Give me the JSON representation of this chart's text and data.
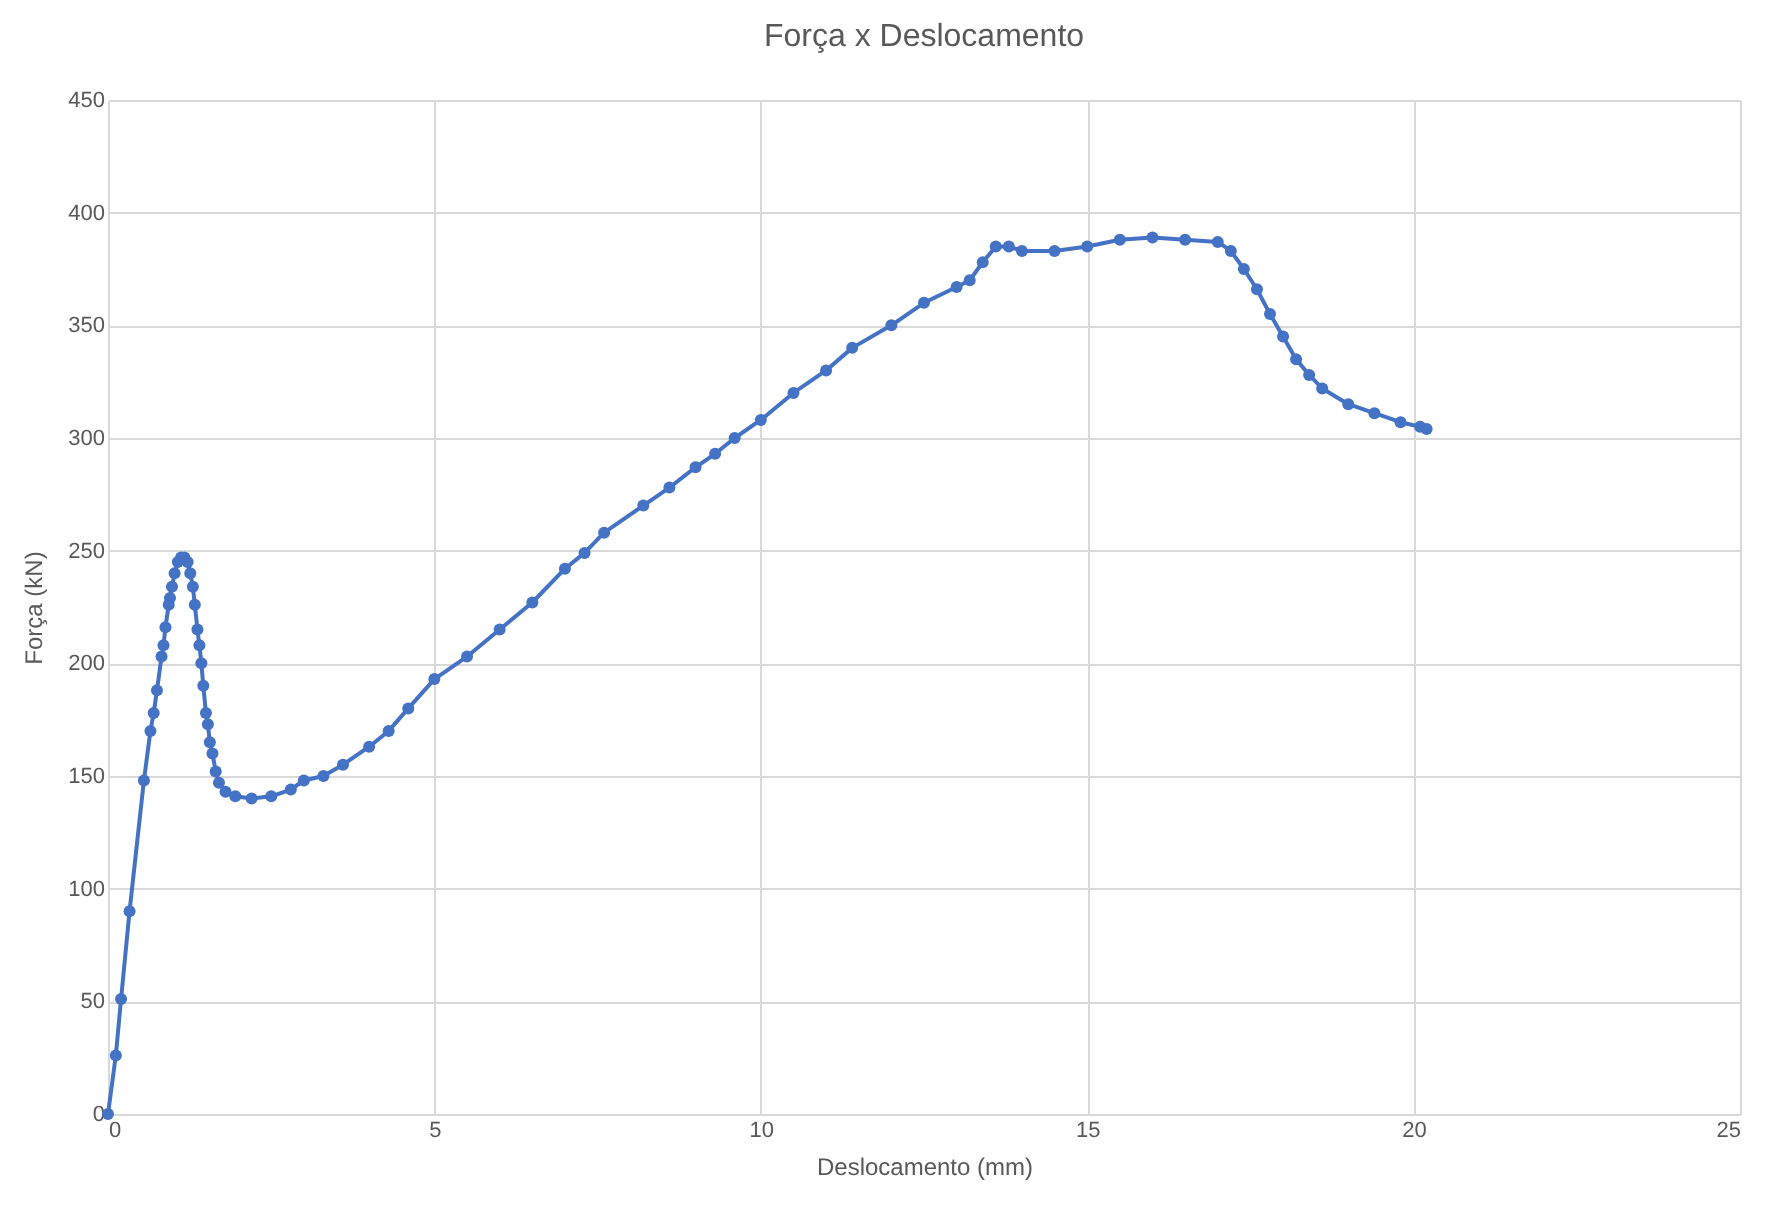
{
  "chart_data": {
    "type": "line",
    "title": "Força x Deslocamento",
    "xlabel": "Deslocamento (mm)",
    "ylabel": "Força (kN)",
    "x": [
      0,
      0.12,
      0.2,
      0.33,
      0.55,
      0.65,
      0.7,
      0.75,
      0.82,
      0.85,
      0.88,
      0.93,
      0.95,
      0.98,
      1.02,
      1.07,
      1.12,
      1.17,
      1.22,
      1.26,
      1.3,
      1.33,
      1.37,
      1.4,
      1.43,
      1.46,
      1.5,
      1.53,
      1.56,
      1.6,
      1.65,
      1.7,
      1.8,
      1.95,
      2.2,
      2.5,
      2.8,
      3.0,
      3.3,
      3.6,
      4.0,
      4.3,
      4.6,
      5.0,
      5.5,
      6.0,
      6.5,
      7.0,
      7.3,
      7.6,
      8.2,
      8.6,
      9.0,
      9.3,
      9.6,
      10.0,
      10.5,
      11.0,
      11.4,
      12.0,
      12.5,
      13.0,
      13.2,
      13.4,
      13.6,
      13.8,
      14.0,
      14.5,
      15.0,
      15.5,
      16.0,
      16.5,
      17.0,
      17.2,
      17.4,
      17.6,
      17.8,
      18.0,
      18.2,
      18.4,
      18.6,
      19.0,
      19.4,
      19.8,
      20.1,
      20.2
    ],
    "series": [
      {
        "color": "#4472c4",
        "values": [
          0,
          26,
          51,
          90,
          148,
          170,
          178,
          188,
          203,
          208,
          216,
          226,
          229,
          234,
          240,
          245,
          247,
          247,
          245,
          240,
          234,
          226,
          215,
          208,
          200,
          190,
          178,
          173,
          165,
          160,
          152,
          147,
          143,
          141,
          140,
          141,
          144,
          148,
          150,
          155,
          163,
          170,
          180,
          193,
          203,
          215,
          227,
          242,
          249,
          258,
          270,
          278,
          287,
          293,
          300,
          308,
          320,
          330,
          340,
          350,
          360,
          367,
          370,
          378,
          385,
          385,
          383,
          383,
          385,
          388,
          389,
          388,
          387,
          383,
          375,
          366,
          355,
          345,
          335,
          328,
          322,
          315,
          311,
          307,
          305,
          304
        ]
      }
    ],
    "xlim": [
      0,
      25
    ],
    "xticks": [
      0,
      5,
      10,
      15,
      20,
      25
    ],
    "ylim": [
      0,
      450
    ],
    "yticks": [
      0,
      50,
      100,
      150,
      200,
      250,
      300,
      350,
      400,
      450
    ],
    "grid": true,
    "marker": "circle",
    "line_style": "solid"
  }
}
